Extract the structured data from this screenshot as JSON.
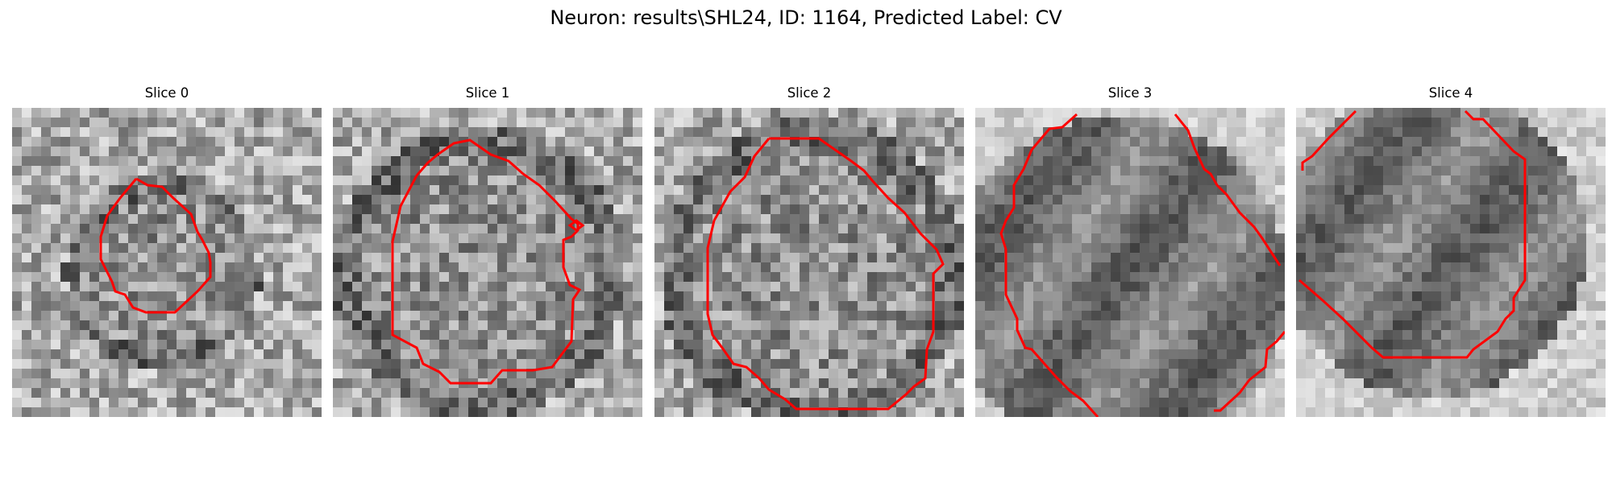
{
  "figure": {
    "title": "Neuron: results\\SHL24, ID: 1164, Predicted Label: CV"
  },
  "panels": [
    {
      "title": "Slice 0"
    },
    {
      "title": "Slice 1"
    },
    {
      "title": "Slice 2"
    },
    {
      "title": "Slice 3"
    },
    {
      "title": "Slice 4"
    }
  ],
  "colors": {
    "contour": "#ff0000"
  }
}
